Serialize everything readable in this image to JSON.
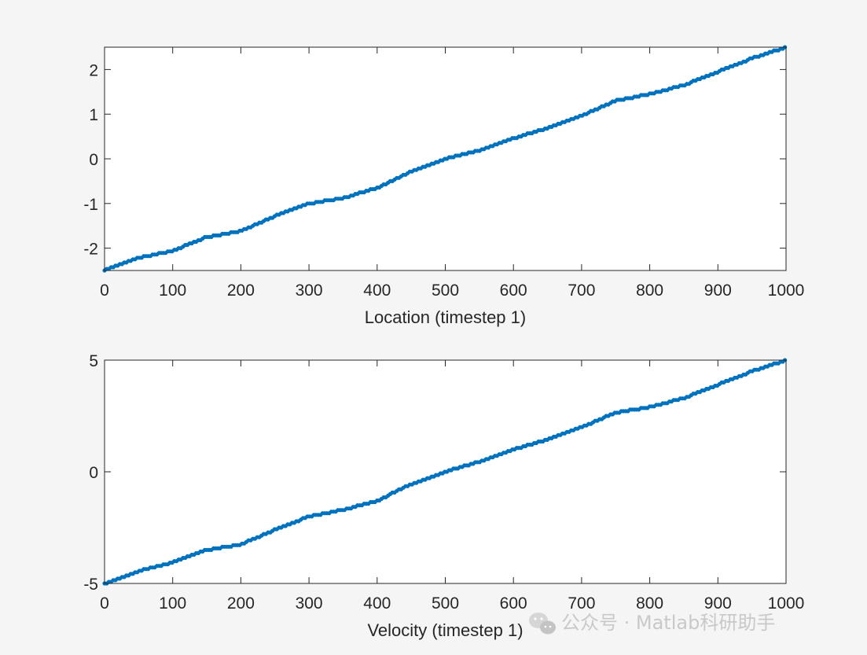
{
  "colors": {
    "background": "#f5f5f5",
    "axes_background": "#ffffff",
    "axis": "#262626",
    "series": "#0072bd",
    "watermark": "#c9c9c9"
  },
  "chart_data": [
    {
      "type": "scatter",
      "title": "",
      "xlabel": "Location (timestep 1)",
      "ylabel": "",
      "xlim": [
        0,
        1000
      ],
      "ylim": [
        -2.5,
        2.5
      ],
      "xticks": [
        0,
        100,
        200,
        300,
        400,
        500,
        600,
        700,
        800,
        900,
        1000
      ],
      "yticks": [
        -2,
        -1,
        0,
        1,
        2
      ],
      "grid": false,
      "legend": "none",
      "series": [
        {
          "marker": "filled dot",
          "color": "#0072bd",
          "x": [
            0,
            50,
            100,
            150,
            200,
            250,
            300,
            350,
            400,
            450,
            500,
            550,
            600,
            650,
            700,
            750,
            800,
            850,
            900,
            950,
            1000
          ],
          "y": [
            -2.5,
            -2.22,
            -2.06,
            -1.75,
            -1.62,
            -1.28,
            -1.0,
            -0.88,
            -0.65,
            -0.28,
            0.0,
            0.19,
            0.46,
            0.69,
            0.97,
            1.3,
            1.45,
            1.65,
            1.95,
            2.25,
            2.5
          ]
        }
      ]
    },
    {
      "type": "scatter",
      "title": "",
      "xlabel": "Velocity (timestep 1)",
      "ylabel": "",
      "xlim": [
        0,
        1000
      ],
      "ylim": [
        -5,
        5
      ],
      "xticks": [
        0,
        100,
        200,
        300,
        400,
        500,
        600,
        700,
        800,
        900,
        1000
      ],
      "yticks": [
        -5,
        0,
        5
      ],
      "grid": false,
      "legend": "none",
      "series": [
        {
          "marker": "filled dot",
          "color": "#0072bd",
          "x": [
            0,
            50,
            100,
            150,
            200,
            250,
            300,
            350,
            400,
            450,
            500,
            550,
            600,
            650,
            700,
            750,
            800,
            850,
            900,
            950,
            1000
          ],
          "y": [
            -5.0,
            -4.45,
            -4.05,
            -3.5,
            -3.25,
            -2.6,
            -2.0,
            -1.7,
            -1.3,
            -0.55,
            0.0,
            0.45,
            1.0,
            1.45,
            2.0,
            2.65,
            2.9,
            3.3,
            3.9,
            4.5,
            5.0
          ]
        }
      ]
    }
  ],
  "watermark": {
    "text": "公众号 · Matlab科研助手",
    "icon": "wechat-icon"
  }
}
